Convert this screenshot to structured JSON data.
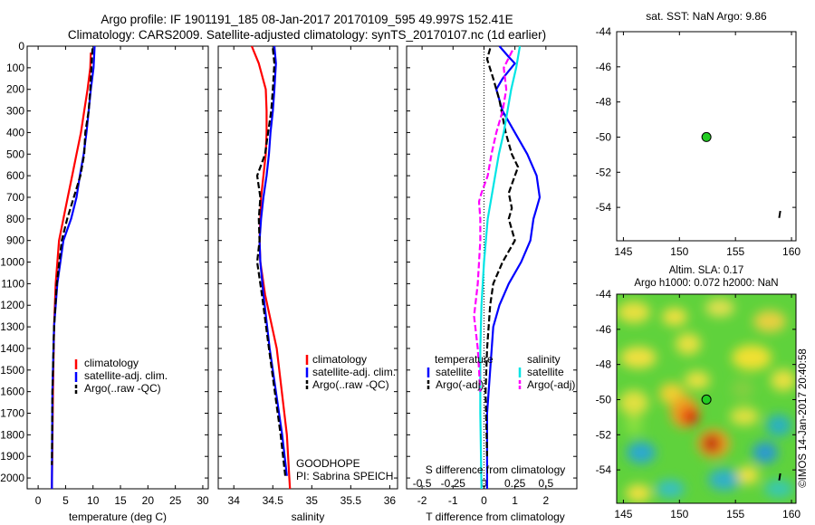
{
  "header": {
    "title_line1": "Argo profile: IF 1901191_185 08-Jan-2017 20170109_595 49.997S 152.41E",
    "title_line2": "Climatology: CARS2009. Satellite-adjusted climatology: synTS_20170107.nc (1d earlier)"
  },
  "colors": {
    "climatology": "#ff0000",
    "satellite": "#0000ff",
    "argo": "#000000",
    "sal_satellite": "#00e5e5",
    "sal_argo": "#ff00ff",
    "marker": "#22cc22"
  },
  "legend_temp": [
    "climatology",
    "satellite-adj. clim.",
    "Argo(..raw -QC)"
  ],
  "legend_sal": [
    "climatology",
    "satellite-adj. clim.",
    "Argo(..raw -QC)"
  ],
  "legend_diff": {
    "temp_header": "temperature",
    "sal_header": "salinity",
    "temp_items": [
      "satellite",
      "Argo(-adj)"
    ],
    "sal_items": [
      "satellite",
      "Argo(-adj)"
    ]
  },
  "annot": {
    "line1": "GOODHOPE",
    "line2": "PI: Sabrina SPEICH"
  },
  "sst_panel": {
    "title": "sat. SST: NaN Argo: 9.86"
  },
  "ssh_panel": {
    "title1": "Altim. SLA: 0.17",
    "title2": "Argo h1000: 0.072 h2000: NaN"
  },
  "credit": "©IMOS 14-Jan-2017 20:40:58",
  "chart_data": [
    {
      "type": "line",
      "xlabel": "temperature (deg C)",
      "xticks": [
        "0",
        "5",
        "10",
        "15",
        "20",
        "25",
        "30"
      ],
      "xlim": [
        -2,
        31
      ],
      "ylim": [
        2050,
        0
      ],
      "yticks": [
        "0",
        "100",
        "200",
        "300",
        "400",
        "500",
        "600",
        "700",
        "800",
        "900",
        "1000",
        "1100",
        "1200",
        "1300",
        "1400",
        "1500",
        "1600",
        "1700",
        "1800",
        "1900",
        "2000"
      ],
      "series": [
        {
          "name": "climatology",
          "x": [
            9.6,
            9.5,
            9.0,
            8.4,
            7.8,
            7.0,
            6.2,
            5.4,
            4.6,
            3.8,
            3.2,
            2.9,
            2.7,
            2.5
          ],
          "y": [
            30,
            100,
            200,
            300,
            400,
            500,
            600,
            700,
            800,
            900,
            1100,
            1300,
            1600,
            2050
          ]
        },
        {
          "name": "satellite-adj. clim.",
          "x": [
            10.3,
            10.1,
            9.6,
            9.2,
            8.8,
            8.3,
            7.6,
            7.0,
            6.0,
            4.6,
            3.5,
            2.9,
            2.6,
            2.5
          ],
          "y": [
            0,
            100,
            200,
            300,
            400,
            500,
            600,
            700,
            800,
            900,
            1100,
            1300,
            1600,
            2050
          ]
        },
        {
          "name": "Argo(..raw -QC)",
          "x": [
            9.9,
            9.7,
            9.5,
            9.2,
            8.6,
            8.4,
            7.7,
            6.5,
            5.3,
            4.3,
            3.4,
            2.9,
            2.6,
            2.5
          ],
          "y": [
            10,
            100,
            200,
            300,
            400,
            500,
            600,
            700,
            800,
            900,
            1100,
            1300,
            1600,
            1940
          ]
        }
      ]
    },
    {
      "type": "line",
      "xlabel": "salinity",
      "xticks": [
        "34",
        "34.5",
        "35",
        "35.5",
        "36"
      ],
      "xlim": [
        33.8,
        36.1
      ],
      "ylim": [
        2050,
        0
      ],
      "series": [
        {
          "name": "climatology",
          "x": [
            34.23,
            34.32,
            34.41,
            34.42,
            34.42,
            34.41,
            34.38,
            34.35,
            34.34,
            34.33,
            34.34,
            34.4,
            34.55,
            34.68,
            34.72
          ],
          "y": [
            0,
            80,
            200,
            300,
            400,
            500,
            600,
            700,
            800,
            900,
            1000,
            1150,
            1400,
            1800,
            2050
          ]
        },
        {
          "name": "satellite-adj. clim.",
          "x": [
            34.52,
            34.54,
            34.52,
            34.5,
            34.47,
            34.45,
            34.42,
            34.38,
            34.35,
            34.33,
            34.34,
            34.38,
            34.46,
            34.62,
            34.68
          ],
          "y": [
            0,
            80,
            200,
            300,
            400,
            500,
            600,
            700,
            800,
            900,
            1000,
            1150,
            1400,
            1800,
            1990
          ]
        },
        {
          "name": "Argo(..raw -QC)",
          "x": [
            34.5,
            34.52,
            34.5,
            34.48,
            34.44,
            34.4,
            34.3,
            34.34,
            34.32,
            34.33,
            34.3,
            34.36,
            34.45,
            34.6,
            34.66
          ],
          "y": [
            10,
            80,
            200,
            300,
            400,
            500,
            600,
            700,
            800,
            900,
            1000,
            1150,
            1400,
            1800,
            1990
          ]
        }
      ]
    },
    {
      "type": "line",
      "xlabel": "T difference from climatology",
      "xlabel2": "S difference from climatology",
      "xticks": [
        "-2",
        "-1",
        "0",
        "1",
        "2"
      ],
      "xticks2": [
        "-0.5",
        "-0.25",
        "0",
        "0.25",
        "0.5"
      ],
      "xlim": [
        -2.5,
        3
      ],
      "ylim": [
        2050,
        0
      ],
      "series": [
        {
          "name": "temperature satellite",
          "x": [
            0.5,
            0.8,
            1.0,
            0.6,
            0.4,
            0.6,
            1.0,
            1.4,
            1.7,
            1.8,
            1.7,
            1.6,
            1.5,
            1.2,
            0.8,
            0.5,
            0.3,
            0.2,
            0.1,
            0.1,
            0.1
          ],
          "y": [
            0,
            50,
            80,
            150,
            200,
            300,
            400,
            500,
            600,
            700,
            750,
            800,
            900,
            1000,
            1100,
            1200,
            1300,
            1500,
            1700,
            1900,
            2050
          ]
        },
        {
          "name": "temperature Argo(-adj)",
          "x": [
            0.2,
            0.1,
            0.3,
            0.5,
            0.7,
            0.9,
            1.1,
            1.0,
            0.8,
            0.9,
            0.8,
            1.0,
            0.6,
            0.3,
            0.2,
            0.1,
            0.05,
            0.1
          ],
          "y": [
            10,
            60,
            150,
            250,
            400,
            500,
            560,
            600,
            680,
            750,
            800,
            900,
            1000,
            1100,
            1200,
            1400,
            1600,
            1900
          ]
        },
        {
          "name": "salinity satellite",
          "x": [
            0.29,
            0.26,
            0.22,
            0.19,
            0.16,
            0.12,
            0.09,
            0.06,
            0.03,
            0.0,
            -0.02,
            -0.03,
            -0.03,
            -0.02
          ],
          "y": [
            0,
            100,
            200,
            300,
            400,
            500,
            600,
            700,
            800,
            1000,
            1200,
            1400,
            1700,
            2050
          ]
        },
        {
          "name": "salinity Argo(-adj)",
          "x": [
            0.23,
            0.16,
            0.18,
            0.15,
            0.1,
            0.06,
            0.03,
            -0.02,
            -0.04,
            -0.03,
            -0.03,
            -0.05,
            -0.08,
            -0.05,
            -0.03
          ],
          "y": [
            20,
            100,
            200,
            300,
            400,
            500,
            600,
            680,
            720,
            800,
            900,
            1100,
            1250,
            1400,
            1600
          ]
        }
      ]
    },
    {
      "type": "scatter",
      "title": "sat. SST: NaN Argo: 9.86",
      "xticks": [
        "145",
        "150",
        "155",
        "160"
      ],
      "yticks": [
        "-44",
        "-46",
        "-48",
        "-50",
        "-52",
        "-54"
      ],
      "xlim": [
        144.4,
        160.4
      ],
      "ylim": [
        -55.9,
        -44
      ],
      "points": [
        {
          "x": 152.41,
          "y": -49.997
        }
      ]
    },
    {
      "type": "heatmap",
      "title": "Altim. SLA: 0.17 / Argo h1000: 0.072 h2000: NaN",
      "xticks": [
        "145",
        "150",
        "155",
        "160"
      ],
      "yticks": [
        "-44",
        "-46",
        "-48",
        "-50",
        "-52",
        "-54"
      ],
      "xlim": [
        144.4,
        160.4
      ],
      "ylim": [
        -55.9,
        -44
      ],
      "points": [
        {
          "x": 152.41,
          "y": -49.997
        }
      ]
    }
  ]
}
